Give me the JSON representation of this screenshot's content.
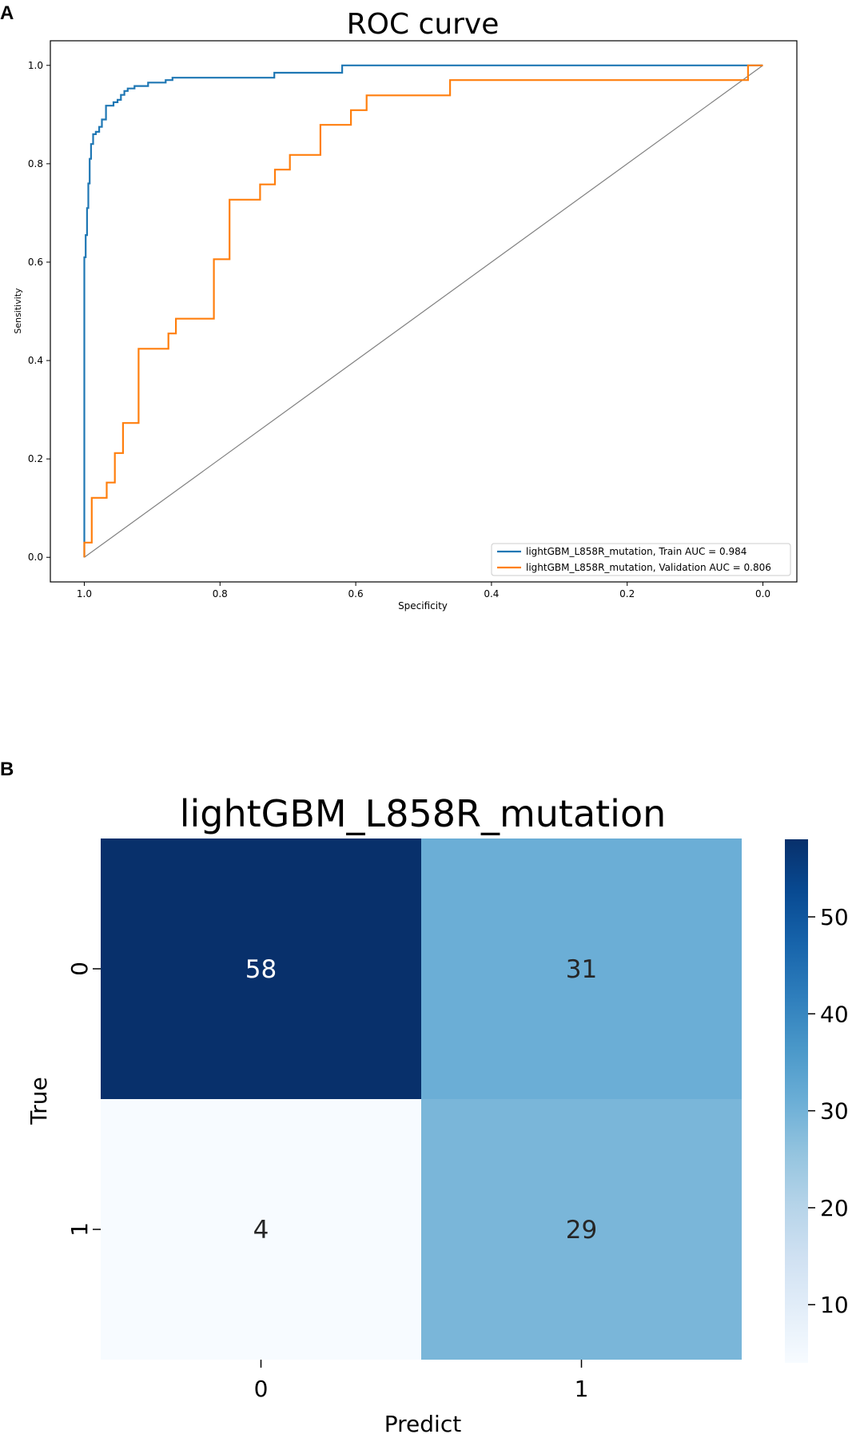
{
  "figure": {
    "panel_a_label": "A",
    "panel_b_label": "B"
  },
  "chart_data": [
    {
      "type": "line",
      "title": "ROC curve",
      "xlabel": "Specificity",
      "ylabel": "Sensitivity",
      "xlim": [
        1.05,
        -0.05
      ],
      "ylim": [
        -0.05,
        1.05
      ],
      "x_axis_reversed": true,
      "xticks": [
        1.0,
        0.8,
        0.6,
        0.4,
        0.2,
        0.0
      ],
      "yticks": [
        0.0,
        0.2,
        0.4,
        0.6,
        0.8,
        1.0
      ],
      "xtick_labels": [
        "1.0",
        "0.8",
        "0.6",
        "0.4",
        "0.2",
        "0.0"
      ],
      "ytick_labels": [
        "0.0",
        "0.2",
        "0.4",
        "0.6",
        "0.8",
        "1.0"
      ],
      "grid": false,
      "legend_position": "bottom-right",
      "series": [
        {
          "name": "lightGBM_L858R_mutation, Train AUC = 0.984",
          "color": "#1f77b4",
          "x": [
            1.0,
            1.0,
            0.998,
            0.998,
            0.996,
            0.996,
            0.994,
            0.994,
            0.992,
            0.992,
            0.99,
            0.99,
            0.987,
            0.987,
            0.983,
            0.983,
            0.978,
            0.978,
            0.974,
            0.974,
            0.968,
            0.968,
            0.963,
            0.957,
            0.957,
            0.951,
            0.951,
            0.946,
            0.946,
            0.941,
            0.941,
            0.936,
            0.936,
            0.926,
            0.926,
            0.906,
            0.906,
            0.88,
            0.88,
            0.87,
            0.87,
            0.72,
            0.72,
            0.62,
            0.62,
            0.02,
            0.02,
            0.0
          ],
          "y": [
            0.0,
            0.61,
            0.61,
            0.655,
            0.655,
            0.71,
            0.71,
            0.76,
            0.76,
            0.81,
            0.81,
            0.84,
            0.84,
            0.86,
            0.86,
            0.865,
            0.865,
            0.875,
            0.875,
            0.89,
            0.89,
            0.918,
            0.918,
            0.918,
            0.925,
            0.925,
            0.93,
            0.93,
            0.94,
            0.94,
            0.948,
            0.948,
            0.953,
            0.953,
            0.958,
            0.958,
            0.965,
            0.965,
            0.97,
            0.97,
            0.975,
            0.975,
            0.985,
            0.985,
            1.0,
            1.0,
            1.0,
            1.0
          ]
        },
        {
          "name": "lightGBM_L858R_mutation, Validation AUC = 0.806",
          "color": "#ff7f0e",
          "x": [
            1.0,
            1.0,
            0.989,
            0.989,
            0.967,
            0.967,
            0.955,
            0.955,
            0.943,
            0.943,
            0.92,
            0.92,
            0.876,
            0.876,
            0.865,
            0.865,
            0.809,
            0.809,
            0.786,
            0.786,
            0.741,
            0.741,
            0.719,
            0.719,
            0.697,
            0.697,
            0.652,
            0.652,
            0.607,
            0.607,
            0.584,
            0.584,
            0.461,
            0.461,
            0.022,
            0.022,
            0.0
          ],
          "y": [
            0.0,
            0.03,
            0.03,
            0.121,
            0.121,
            0.152,
            0.152,
            0.212,
            0.212,
            0.273,
            0.273,
            0.424,
            0.424,
            0.455,
            0.455,
            0.485,
            0.485,
            0.606,
            0.606,
            0.727,
            0.727,
            0.758,
            0.758,
            0.788,
            0.788,
            0.818,
            0.818,
            0.879,
            0.879,
            0.909,
            0.909,
            0.939,
            0.939,
            0.97,
            0.97,
            1.0,
            1.0
          ]
        }
      ],
      "reference_line": {
        "x": [
          1.0,
          0.0
        ],
        "y": [
          0.0,
          1.0
        ],
        "color": "#808080"
      }
    },
    {
      "type": "heatmap",
      "title": "lightGBM_L858R_mutation",
      "xlabel": "Predict",
      "ylabel": "True",
      "x_categories": [
        "0",
        "1"
      ],
      "y_categories": [
        "0",
        "1"
      ],
      "values": [
        [
          58,
          31
        ],
        [
          4,
          29
        ]
      ],
      "colormap": "Blues",
      "colorbar_range": [
        4,
        58
      ],
      "colorbar_ticks": [
        10,
        20,
        30,
        40,
        50
      ],
      "colorbar_tick_labels": [
        "10",
        "20",
        "30",
        "40",
        "50"
      ]
    }
  ]
}
